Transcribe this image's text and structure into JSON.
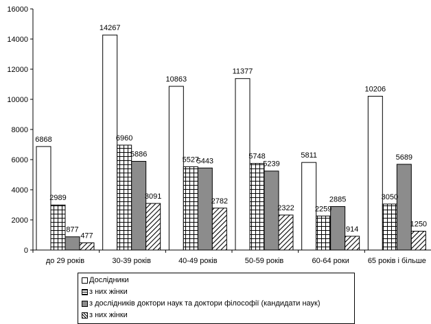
{
  "chart_data": {
    "type": "bar",
    "categories": [
      "до 29 років",
      "30-39 років",
      "40-49 років",
      "50-59 років",
      "60-64 роки",
      "65 років і більше"
    ],
    "series": [
      {
        "name": "Дослідники",
        "values": [
          6868,
          14267,
          10863,
          11377,
          5811,
          10206
        ],
        "labels": [
          "6868",
          "14267",
          "10863",
          "11377",
          "5811",
          "10206"
        ],
        "pattern": "white",
        "color": "#ffffff"
      },
      {
        "name": "з них жінки",
        "values": [
          2989,
          6960,
          5527,
          5748,
          2259,
          3050
        ],
        "labels": [
          "2989",
          "6960",
          "5527",
          "5748",
          "2259",
          "3050"
        ],
        "pattern": "grid",
        "color": "#ffffff"
      },
      {
        "name": "з дослідників доктори наук та доктори філософії (кандидати наук)",
        "values": [
          877,
          5886,
          5443,
          5239,
          2885,
          5689
        ],
        "labels": [
          "877",
          "5886",
          "5443",
          "5239",
          "2885",
          "5689"
        ],
        "pattern": "gray",
        "color": "#8c8c8c"
      },
      {
        "name": "з них жінки",
        "values": [
          477,
          3091,
          2782,
          2322,
          914,
          1250
        ],
        "labels": [
          "477",
          "3091",
          "2782",
          "2322",
          "914",
          "1250"
        ],
        "pattern": "hatch",
        "color": "#ffffff"
      }
    ],
    "yticks": [
      "0",
      "2000",
      "4000",
      "6000",
      "8000",
      "10000",
      "12000",
      "14000",
      "16000"
    ],
    "ylim": [
      0,
      16000
    ],
    "grid": false,
    "legend_position": "bottom",
    "title": "",
    "xlabel": "",
    "ylabel": ""
  }
}
